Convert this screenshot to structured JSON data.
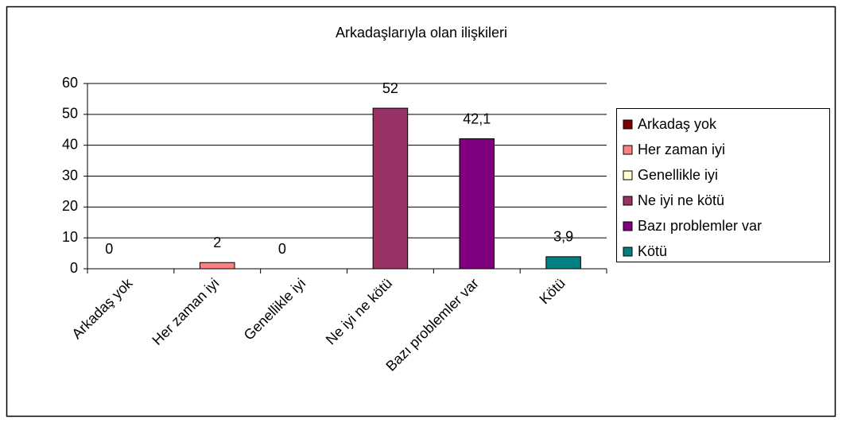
{
  "chart_data": {
    "type": "bar",
    "title": "Arkadaşlarıyla olan ilişkileri",
    "categories": [
      "Arkadaş yok",
      "Her zaman iyi",
      "Genellikle iyi",
      "Ne iyi ne kötü",
      "Bazı problemler var",
      "Kötü"
    ],
    "values": [
      0,
      2,
      0,
      52,
      42.1,
      3.9
    ],
    "value_labels": [
      "0",
      "2",
      "0",
      "52",
      "42,1",
      "3,9"
    ],
    "colors": [
      "#800000",
      "#ff8080",
      "#ffffcc",
      "#993366",
      "#800080",
      "#008080"
    ],
    "ylim": [
      0,
      60
    ],
    "yticks": [
      0,
      10,
      20,
      30,
      40,
      50,
      60
    ],
    "grid": true,
    "legend": "right"
  }
}
